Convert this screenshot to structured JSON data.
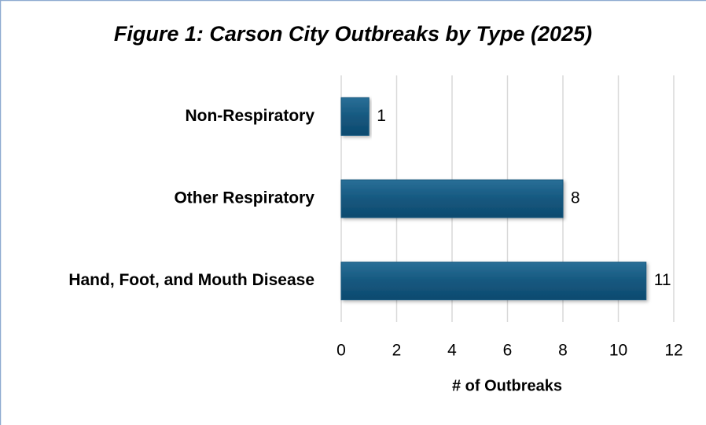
{
  "chart_data": {
    "type": "bar",
    "orientation": "horizontal",
    "title": "Figure 1: Carson City Outbreaks by Type (2025)",
    "categories": [
      "Non-Respiratory",
      "Other Respiratory",
      "Hand, Foot, and Mouth Disease"
    ],
    "values": [
      1,
      8,
      11
    ],
    "color": "#15587f",
    "xlim": [
      0,
      12
    ],
    "xticks": [
      0,
      2,
      4,
      6,
      8,
      10,
      12
    ],
    "xlabel": "# of Outbreaks",
    "grid": true
  }
}
